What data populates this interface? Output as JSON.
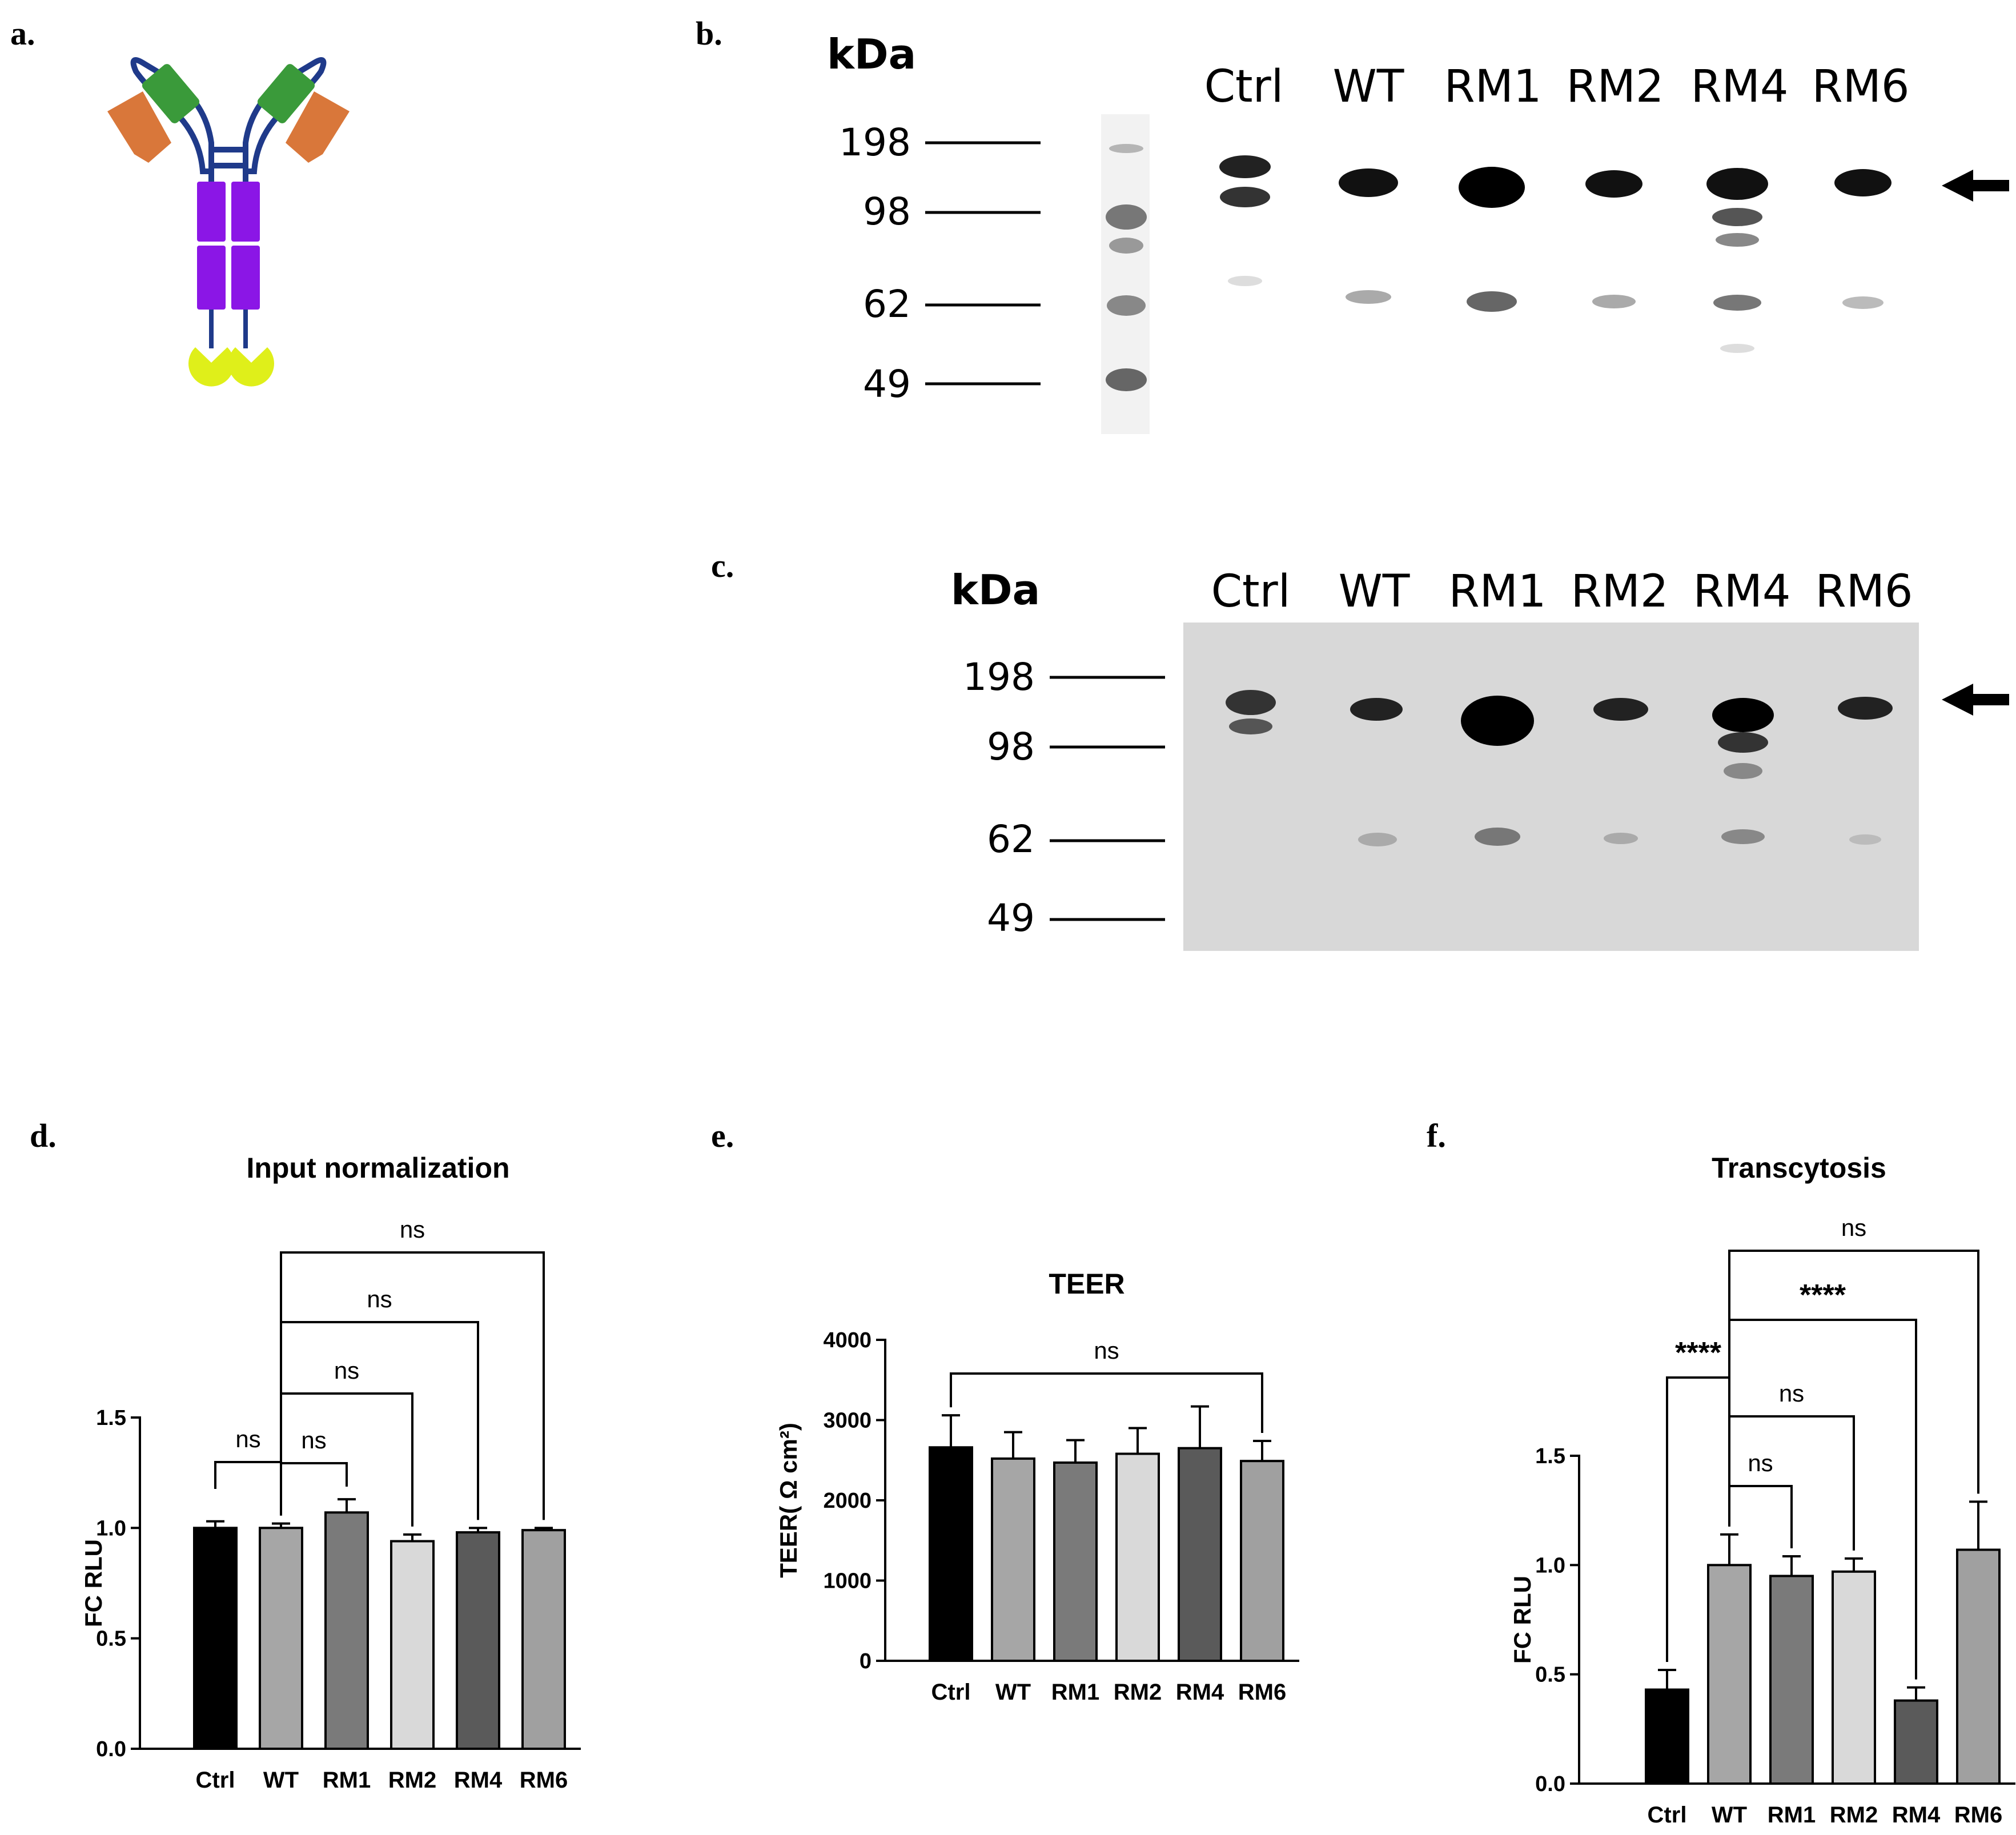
{
  "panels": {
    "a": "a.",
    "b": "b.",
    "c": "c.",
    "d": "d.",
    "e": "e.",
    "f": "f."
  },
  "gels": [
    {
      "id": "b",
      "unit_label": "kDa",
      "markers": [
        "198",
        "98",
        "62",
        "49"
      ],
      "lanes": [
        "Ctrl",
        "WT",
        "RM1",
        "RM2",
        "RM4",
        "RM6"
      ],
      "arrow": "left-arrow-icon",
      "background": "#ffffff"
    },
    {
      "id": "c",
      "unit_label": "kDa",
      "markers": [
        "198",
        "98",
        "62",
        "49"
      ],
      "lanes": [
        "Ctrl",
        "WT",
        "RM1",
        "RM2",
        "RM4",
        "RM6"
      ],
      "arrow": "left-arrow-icon",
      "background": "#d8d8d8"
    }
  ],
  "antibody_colors": {
    "outline": "#1f3a8a",
    "green_domain": "#3a9a3a",
    "orange_domain": "#d9773a",
    "purple_domain": "#8b16e6",
    "yellow_domain": "#dfef1a"
  },
  "chart_data": [
    {
      "panel": "d",
      "type": "bar",
      "title": "Input normalization",
      "ylabel": "FC RLU",
      "categories": [
        "Ctrl",
        "WT",
        "RM1",
        "RM2",
        "RM4",
        "RM6"
      ],
      "values": [
        1.0,
        1.0,
        1.07,
        0.94,
        0.98,
        0.99
      ],
      "errors": [
        0.03,
        0.02,
        0.06,
        0.03,
        0.02,
        0.01
      ],
      "colors": [
        "#000000",
        "#a6a6a6",
        "#7a7a7a",
        "#d9d9d9",
        "#5a5a5a",
        "#a0a0a0"
      ],
      "ylim": [
        0,
        1.5
      ],
      "yticks": [
        "0.0",
        "0.5",
        "1.0",
        "1.5"
      ],
      "comparisons": [
        {
          "from": "Ctrl",
          "to": "WT",
          "label": "ns"
        },
        {
          "from": "WT",
          "to": "RM1",
          "label": "ns"
        },
        {
          "from": "WT",
          "to": "RM2",
          "label": "ns"
        },
        {
          "from": "WT",
          "to": "RM4",
          "label": "ns"
        },
        {
          "from": "WT",
          "to": "RM6",
          "label": "ns"
        }
      ]
    },
    {
      "panel": "e",
      "type": "bar",
      "title": "TEER",
      "ylabel": "TEER( Ω cm²)",
      "categories": [
        "Ctrl",
        "WT",
        "RM1",
        "RM2",
        "RM4",
        "RM6"
      ],
      "values": [
        2660,
        2520,
        2470,
        2580,
        2650,
        2490
      ],
      "errors": [
        400,
        330,
        280,
        320,
        520,
        250
      ],
      "colors": [
        "#000000",
        "#a6a6a6",
        "#7a7a7a",
        "#d9d9d9",
        "#5a5a5a",
        "#a0a0a0"
      ],
      "ylim": [
        0,
        4000
      ],
      "yticks": [
        "0",
        "1000",
        "2000",
        "3000",
        "4000"
      ],
      "comparisons": [
        {
          "from": "Ctrl",
          "to": "RM6",
          "label": "ns"
        }
      ]
    },
    {
      "panel": "f",
      "type": "bar",
      "title": "Transcytosis",
      "ylabel": "FC RLU",
      "categories": [
        "Ctrl",
        "WT",
        "RM1",
        "RM2",
        "RM4",
        "RM6"
      ],
      "values": [
        0.43,
        1.0,
        0.95,
        0.97,
        0.38,
        1.07
      ],
      "errors": [
        0.09,
        0.14,
        0.09,
        0.06,
        0.06,
        0.22
      ],
      "colors": [
        "#000000",
        "#a6a6a6",
        "#7a7a7a",
        "#d9d9d9",
        "#5a5a5a",
        "#a0a0a0"
      ],
      "ylim": [
        0,
        1.5
      ],
      "yticks": [
        "0.0",
        "0.5",
        "1.0",
        "1.5"
      ],
      "comparisons": [
        {
          "from": "Ctrl",
          "to": "WT",
          "label": "****"
        },
        {
          "from": "WT",
          "to": "RM1",
          "label": "ns"
        },
        {
          "from": "WT",
          "to": "RM2",
          "label": "ns"
        },
        {
          "from": "WT",
          "to": "RM4",
          "label": "****"
        },
        {
          "from": "WT",
          "to": "RM6",
          "label": "ns"
        }
      ]
    }
  ]
}
